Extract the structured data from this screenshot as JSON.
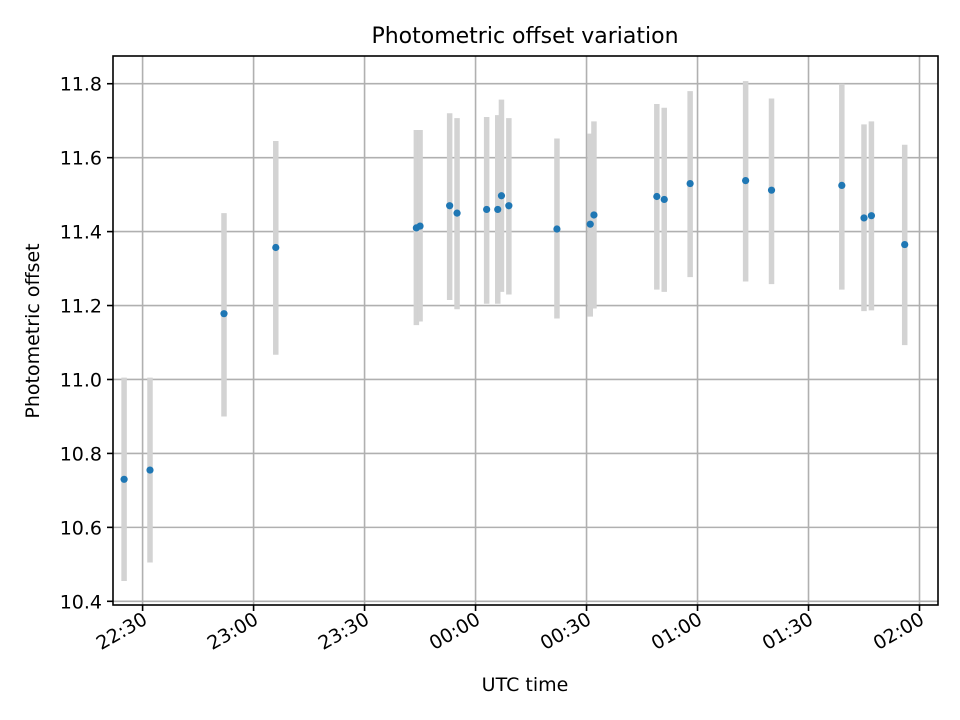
{
  "chart_data": {
    "type": "scatter",
    "title": "Photometric offset variation",
    "xlabel": "UTC time",
    "ylabel": "Photometric offset",
    "x_axis": "time",
    "xlim": [
      "22:22",
      "02:05"
    ],
    "ylim": [
      10.39,
      11.875
    ],
    "x_ticks": [
      {
        "value": "22:30",
        "label": "22:30"
      },
      {
        "value": "23:00",
        "label": "23:00"
      },
      {
        "value": "23:30",
        "label": "23:30"
      },
      {
        "value": "00:00",
        "label": "00:00"
      },
      {
        "value": "00:30",
        "label": "00:30"
      },
      {
        "value": "01:00",
        "label": "01:00"
      },
      {
        "value": "01:30",
        "label": "01:30"
      },
      {
        "value": "02:00",
        "label": "02:00"
      }
    ],
    "y_ticks": [
      {
        "value": 10.4,
        "label": "10.4"
      },
      {
        "value": 10.6,
        "label": "10.6"
      },
      {
        "value": 10.8,
        "label": "10.8"
      },
      {
        "value": 11.0,
        "label": "11.0"
      },
      {
        "value": 11.2,
        "label": "11.2"
      },
      {
        "value": 11.4,
        "label": "11.4"
      },
      {
        "value": 11.6,
        "label": "11.6"
      },
      {
        "value": 11.8,
        "label": "11.8"
      }
    ],
    "grid": true,
    "colors": {
      "point": "#1f77b4",
      "errorbar": "#d3d3d3"
    },
    "points": [
      {
        "x": "22:25",
        "y": 10.73,
        "ylow": 10.455,
        "yhigh": 11.005
      },
      {
        "x": "22:32",
        "y": 10.755,
        "ylow": 10.505,
        "yhigh": 11.005
      },
      {
        "x": "22:52",
        "y": 11.178,
        "ylow": 10.9,
        "yhigh": 11.45
      },
      {
        "x": "23:06",
        "y": 11.357,
        "ylow": 11.067,
        "yhigh": 11.645
      },
      {
        "x": "23:44",
        "y": 11.41,
        "ylow": 11.147,
        "yhigh": 11.675
      },
      {
        "x": "23:45",
        "y": 11.415,
        "ylow": 11.157,
        "yhigh": 11.675
      },
      {
        "x": "23:53",
        "y": 11.47,
        "ylow": 11.215,
        "yhigh": 11.72
      },
      {
        "x": "23:55",
        "y": 11.45,
        "ylow": 11.19,
        "yhigh": 11.707
      },
      {
        "x": "00:03",
        "y": 11.46,
        "ylow": 11.205,
        "yhigh": 11.71
      },
      {
        "x": "00:06",
        "y": 11.46,
        "ylow": 11.205,
        "yhigh": 11.715
      },
      {
        "x": "00:07",
        "y": 11.497,
        "ylow": 11.237,
        "yhigh": 11.757
      },
      {
        "x": "00:09",
        "y": 11.47,
        "ylow": 11.23,
        "yhigh": 11.707
      },
      {
        "x": "00:22",
        "y": 11.407,
        "ylow": 11.165,
        "yhigh": 11.652
      },
      {
        "x": "00:31",
        "y": 11.42,
        "ylow": 11.17,
        "yhigh": 11.665
      },
      {
        "x": "00:32",
        "y": 11.445,
        "ylow": 11.192,
        "yhigh": 11.698
      },
      {
        "x": "00:49",
        "y": 11.495,
        "ylow": 11.243,
        "yhigh": 11.745
      },
      {
        "x": "00:51",
        "y": 11.487,
        "ylow": 11.237,
        "yhigh": 11.735
      },
      {
        "x": "00:58",
        "y": 11.53,
        "ylow": 11.277,
        "yhigh": 11.78
      },
      {
        "x": "01:13",
        "y": 11.538,
        "ylow": 11.265,
        "yhigh": 11.807
      },
      {
        "x": "01:20",
        "y": 11.512,
        "ylow": 11.258,
        "yhigh": 11.76
      },
      {
        "x": "01:39",
        "y": 11.525,
        "ylow": 11.243,
        "yhigh": 11.8
      },
      {
        "x": "01:45",
        "y": 11.437,
        "ylow": 11.185,
        "yhigh": 11.69
      },
      {
        "x": "01:47",
        "y": 11.443,
        "ylow": 11.187,
        "yhigh": 11.698
      },
      {
        "x": "01:56",
        "y": 11.365,
        "ylow": 11.093,
        "yhigh": 11.635
      }
    ]
  }
}
